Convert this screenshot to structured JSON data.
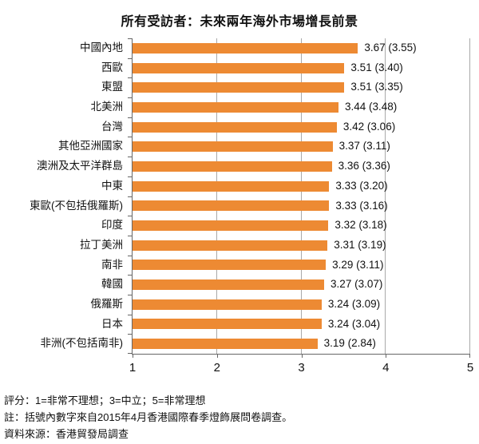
{
  "title": "所有受訪者：未來兩年海外市場增長前景",
  "chart_data": {
    "type": "bar",
    "orientation": "horizontal",
    "title": "所有受訪者：未來兩年海外市場增長前景",
    "categories": [
      "中國內地",
      "西歐",
      "東盟",
      "北美洲",
      "台灣",
      "其他亞洲國家",
      "澳洲及太平洋群島",
      "中東",
      "東歐(不包括俄羅斯)",
      "印度",
      "拉丁美洲",
      "南非",
      "韓國",
      "俄羅斯",
      "日本",
      "非洲(不包括南非)"
    ],
    "values": [
      3.67,
      3.51,
      3.51,
      3.44,
      3.42,
      3.37,
      3.36,
      3.33,
      3.33,
      3.32,
      3.31,
      3.29,
      3.27,
      3.24,
      3.24,
      3.19
    ],
    "paren_values": [
      3.55,
      3.4,
      3.35,
      3.48,
      3.06,
      3.11,
      3.36,
      3.2,
      3.16,
      3.18,
      3.19,
      3.11,
      3.07,
      3.09,
      3.04,
      2.84
    ],
    "value_labels": [
      "3.67 (3.55)",
      "3.51 (3.40)",
      "3.51 (3.35)",
      "3.44 (3.48)",
      "3.42 (3.06)",
      "3.37 (3.11)",
      "3.36 (3.36)",
      "3.33 (3.20)",
      "3.33 (3.16)",
      "3.32 (3.18)",
      "3.31 (3.19)",
      "3.29 (3.11)",
      "3.27 (3.07)",
      "3.24 (3.09)",
      "3.24 (3.04)",
      "3.19 (2.84)"
    ],
    "xlabel": "",
    "ylabel": "",
    "xlim": [
      1,
      5
    ],
    "xticks": [
      1,
      2,
      3,
      4,
      5
    ],
    "grid": true,
    "legend": false,
    "bar_color": "#ED8A33",
    "gridline_color": "#A9A9A9",
    "axis_color": "#666666"
  },
  "footer": {
    "rating_note": "評分：1=非常不理想；3=中立；5=非常理想",
    "paren_note": "註：括號內數字來自2015年4月香港國際春季燈飾展問卷調查。",
    "source_note": "資料來源：香港貿發局調查"
  }
}
